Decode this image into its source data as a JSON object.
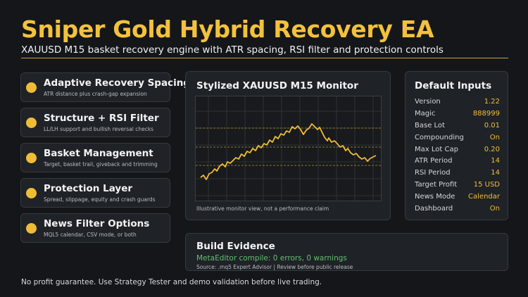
{
  "header": {
    "title": "Sniper Gold Hybrid Recovery EA",
    "subtitle": "XAUUSD M15 basket recovery engine with ATR spacing, RSI filter and protection controls"
  },
  "features": [
    {
      "title": "Adaptive Recovery Spacing",
      "desc": "ATR distance plus crash-gap expansion"
    },
    {
      "title": "Structure + RSI Filter",
      "desc": "LL/LH support and bullish reversal checks"
    },
    {
      "title": "Basket Management",
      "desc": "Target, basket trail, giveback and trimming"
    },
    {
      "title": "Protection Layer",
      "desc": "Spread, slippage, equity and crash guards"
    },
    {
      "title": "News Filter Options",
      "desc": "MQL5 calendar, CSV mode, or both"
    }
  ],
  "monitor": {
    "title": "Stylized XAUUSD M15 Monitor",
    "caption": "Illustrative monitor view, not a performance claim"
  },
  "inputs": {
    "title": "Default Inputs",
    "rows": [
      {
        "key": "Version",
        "value": "1.22"
      },
      {
        "key": "Magic",
        "value": "888999"
      },
      {
        "key": "Base Lot",
        "value": "0.01"
      },
      {
        "key": "Compounding",
        "value": "On"
      },
      {
        "key": "Max Lot Cap",
        "value": "0.20"
      },
      {
        "key": "ATR Period",
        "value": "14"
      },
      {
        "key": "RSI Period",
        "value": "14"
      },
      {
        "key": "Target Profit",
        "value": "15 USD"
      },
      {
        "key": "News Mode",
        "value": "Calendar"
      },
      {
        "key": "Dashboard",
        "value": "On"
      }
    ]
  },
  "build": {
    "title": "Build Evidence",
    "status": "MetaEditor compile: 0 errors, 0 warnings",
    "source": "Source: .mq5 Expert Advisor | Review before public release"
  },
  "footer": "No profit guarantee. Use Strategy Tester and demo validation before live trading.",
  "colors": {
    "accent": "#f3c13c",
    "ok": "#5fc070",
    "background": "#141619",
    "card": "#1f2226"
  }
}
